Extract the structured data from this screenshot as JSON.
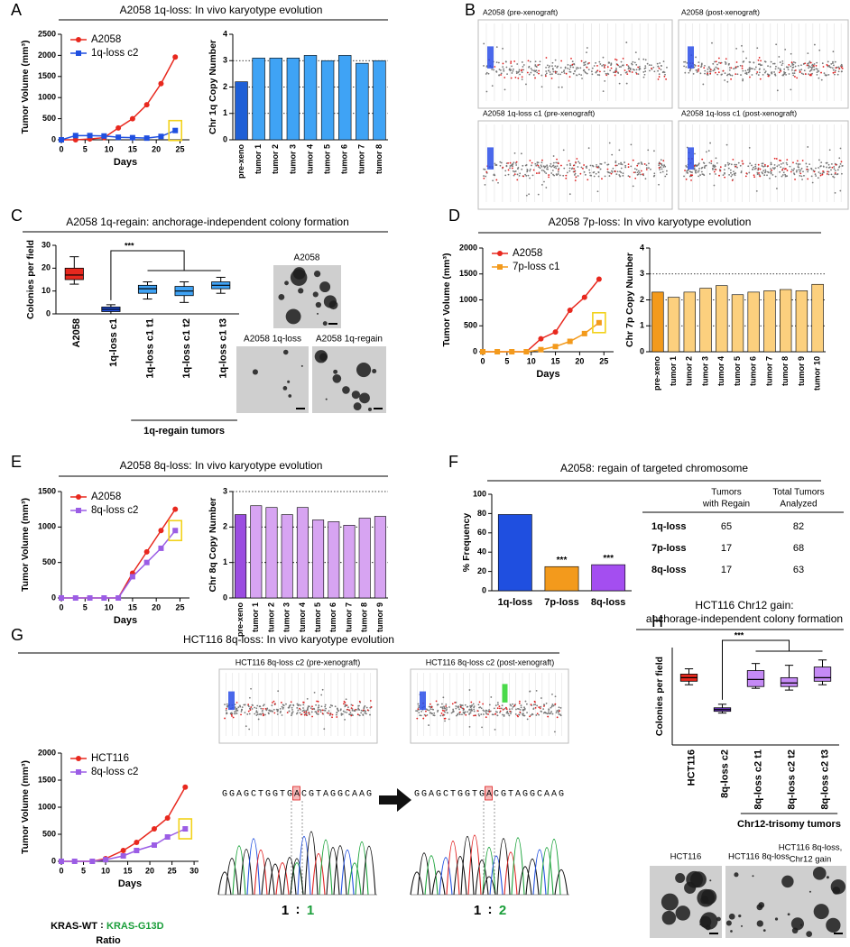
{
  "panel_labels": [
    "A",
    "B",
    "C",
    "D",
    "E",
    "F",
    "G",
    "H"
  ],
  "chart_data": [
    {
      "type": "line",
      "title": "A2058 1q-loss: In vivo karyotype evolution",
      "xlabel": "Days",
      "ylabel": "Tumor Volume (mm³)",
      "x": [
        0,
        3,
        6,
        9,
        12,
        15,
        18,
        21,
        24
      ],
      "series": [
        {
          "name": "A2058",
          "color": "#e8281e",
          "marker": "circle",
          "values": [
            0,
            0,
            20,
            50,
            280,
            500,
            830,
            1330,
            1960
          ]
        },
        {
          "name": "1q-loss c2",
          "color": "#1f4fe0",
          "marker": "square",
          "values": [
            0,
            100,
            100,
            90,
            60,
            50,
            40,
            80,
            220
          ]
        }
      ],
      "xlim": [
        0,
        27
      ],
      "ylim": [
        0,
        2500
      ],
      "xticks": [
        0,
        5,
        10,
        15,
        20,
        25
      ],
      "yticks": [
        0,
        500,
        1000,
        1500,
        2000,
        2500
      ],
      "legend": "upper left"
    },
    {
      "type": "bar",
      "ylabel": "Chr 1q Copy Number",
      "categories": [
        "pre-xeno",
        "tumor 1",
        "tumor 2",
        "tumor 3",
        "tumor 4",
        "tumor 5",
        "tumor 6",
        "tumor 7",
        "tumor 8"
      ],
      "values": [
        2.2,
        3.1,
        3.1,
        3.1,
        3.2,
        3.0,
        3.2,
        2.9,
        3.0
      ],
      "colors": [
        "#1f5fd6",
        "#3fa3f5",
        "#3fa3f5",
        "#3fa3f5",
        "#3fa3f5",
        "#3fa3f5",
        "#3fa3f5",
        "#3fa3f5",
        "#3fa3f5"
      ],
      "ylim": [
        0,
        4
      ],
      "yticks": [
        0,
        1,
        2,
        3,
        4
      ],
      "reference_lines": [
        1,
        2,
        3
      ]
    },
    {
      "type": "box",
      "title": "A2058 1q-regain: anchorage-independent colony formation",
      "ylabel": "Colonies per field",
      "categories": [
        "A2058",
        "1q-loss c1",
        "1q-loss c1 t1",
        "1q-loss c1 t2",
        "1q-loss c1 t3"
      ],
      "boxes": [
        {
          "min": 13,
          "q1": 15,
          "median": 17,
          "q3": 20,
          "max": 25
        },
        {
          "min": 0,
          "q1": 1,
          "median": 2,
          "q3": 3,
          "max": 4
        },
        {
          "min": 6.5,
          "q1": 9,
          "median": 11,
          "q3": 12.5,
          "max": 14
        },
        {
          "min": 5,
          "q1": 8,
          "median": 10,
          "q3": 12,
          "max": 14
        },
        {
          "min": 9,
          "q1": 11,
          "median": 12.5,
          "q3": 14,
          "max": 16
        }
      ],
      "colors": [
        "#e8281e",
        "#1f4fe0",
        "#3fa3f5",
        "#3fa3f5",
        "#3fa3f5"
      ],
      "ylim": [
        0,
        30
      ],
      "yticks": [
        0,
        10,
        20,
        30
      ],
      "annotation": "***",
      "group_label": "1q-regain tumors"
    },
    {
      "type": "line",
      "title": "A2058 7p-loss: In vivo karyotype evolution",
      "xlabel": "Days",
      "ylabel": "Tumor Volume (mm³)",
      "x": [
        0,
        3,
        6,
        9,
        12,
        15,
        18,
        21,
        24
      ],
      "series": [
        {
          "name": "A2058",
          "color": "#e8281e",
          "marker": "circle",
          "values": [
            0,
            0,
            0,
            0,
            250,
            380,
            800,
            1050,
            1400
          ]
        },
        {
          "name": "7p-loss c1",
          "color": "#f39a1c",
          "marker": "square",
          "values": [
            0,
            0,
            0,
            0,
            40,
            100,
            200,
            350,
            560
          ]
        }
      ],
      "xlim": [
        0,
        27
      ],
      "ylim": [
        0,
        2000
      ],
      "xticks": [
        0,
        5,
        10,
        15,
        20,
        25
      ],
      "yticks": [
        0,
        500,
        1000,
        1500,
        2000
      ],
      "legend": "upper left"
    },
    {
      "type": "bar",
      "ylabel": "Chr 7p Copy Number",
      "categories": [
        "pre-xeno",
        "tumor 1",
        "tumor 2",
        "tumor 3",
        "tumor 4",
        "tumor 5",
        "tumor 6",
        "tumor 7",
        "tumor 8",
        "tumor 9",
        "tumor 10"
      ],
      "values": [
        2.3,
        2.1,
        2.3,
        2.45,
        2.55,
        2.2,
        2.3,
        2.35,
        2.4,
        2.35,
        2.6
      ],
      "colors": [
        "#f39a1c",
        "#fcd07e",
        "#fcd07e",
        "#fcd07e",
        "#fcd07e",
        "#fcd07e",
        "#fcd07e",
        "#fcd07e",
        "#fcd07e",
        "#fcd07e",
        "#fcd07e"
      ],
      "ylim": [
        0,
        4
      ],
      "yticks": [
        0,
        1,
        2,
        3,
        4
      ],
      "reference_lines": [
        1,
        2,
        3
      ]
    },
    {
      "type": "line",
      "title": "A2058 8q-loss: In vivo karyotype evolution",
      "xlabel": "Days",
      "ylabel": "Tumor Volume (mm³)",
      "x": [
        0,
        3,
        6,
        9,
        12,
        15,
        18,
        21,
        24
      ],
      "series": [
        {
          "name": "A2058",
          "color": "#e8281e",
          "marker": "circle",
          "values": [
            0,
            0,
            0,
            0,
            0,
            350,
            650,
            950,
            1250
          ]
        },
        {
          "name": "8q-loss c2",
          "color": "#9b5de5",
          "marker": "square",
          "values": [
            0,
            0,
            0,
            0,
            0,
            300,
            500,
            700,
            950
          ]
        }
      ],
      "xlim": [
        0,
        27
      ],
      "ylim": [
        0,
        1500
      ],
      "xticks": [
        0,
        5,
        10,
        15,
        20,
        25
      ],
      "yticks": [
        0,
        500,
        1000,
        1500
      ],
      "legend": "upper left"
    },
    {
      "type": "bar",
      "ylabel": "Chr 8q Copy Number",
      "categories": [
        "pre-xeno",
        "tumor 1",
        "tumor 2",
        "tumor 3",
        "tumor 4",
        "tumor 5",
        "tumor 6",
        "tumor 7",
        "tumor 8",
        "tumor 9"
      ],
      "values": [
        2.35,
        2.6,
        2.55,
        2.35,
        2.55,
        2.2,
        2.15,
        2.05,
        2.25,
        2.3
      ],
      "colors": [
        "#9b4de0",
        "#d7a4f2",
        "#d7a4f2",
        "#d7a4f2",
        "#d7a4f2",
        "#d7a4f2",
        "#d7a4f2",
        "#d7a4f2",
        "#d7a4f2",
        "#d7a4f2"
      ],
      "ylim": [
        0,
        3
      ],
      "yticks": [
        0,
        1,
        2,
        3
      ],
      "reference_lines": [
        1,
        2,
        3
      ]
    },
    {
      "type": "bar",
      "title": "A2058: regain of targeted chromosome",
      "ylabel": "% Frequency",
      "categories": [
        "1q-loss",
        "7p-loss",
        "8q-loss"
      ],
      "values": [
        79,
        25,
        27
      ],
      "colors": [
        "#1f4fe0",
        "#f39a1c",
        "#a44ef0"
      ],
      "ylim": [
        0,
        100
      ],
      "yticks": [
        0,
        20,
        40,
        60,
        80,
        100
      ],
      "bar_annotations": [
        null,
        "***",
        "***"
      ]
    },
    {
      "type": "line",
      "title": "HCT116 8q-loss: In vivo karyotype evolution",
      "xlabel": "Days",
      "ylabel": "Tumor Volume (mm³)",
      "x": [
        0,
        3,
        7,
        10,
        14,
        17,
        21,
        24,
        28
      ],
      "series": [
        {
          "name": "HCT116",
          "color": "#e8281e",
          "marker": "circle",
          "values": [
            0,
            0,
            0,
            50,
            200,
            350,
            600,
            800,
            1370
          ]
        },
        {
          "name": "8q-loss c2",
          "color": "#9b5de5",
          "marker": "square",
          "values": [
            0,
            0,
            0,
            30,
            100,
            200,
            300,
            450,
            600
          ]
        }
      ],
      "xlim": [
        0,
        31
      ],
      "ylim": [
        0,
        2000
      ],
      "xticks": [
        0,
        5,
        10,
        15,
        20,
        25,
        30
      ],
      "yticks": [
        0,
        500,
        1000,
        1500,
        2000
      ],
      "legend": "upper left"
    },
    {
      "type": "box",
      "title": "HCT116 Chr12 gain:",
      "subtitle": "anchorage-independent colony formation",
      "ylabel": "Colonies per field",
      "categories": [
        "HCT116",
        "8q-loss c2",
        "8q-loss c2 t1",
        "8q-loss c2 t2",
        "8q-loss c2 t3"
      ],
      "boxes": [
        {
          "min": 34,
          "q1": 36,
          "median": 38,
          "q3": 40,
          "max": 43
        },
        {
          "min": 18,
          "q1": 19,
          "median": 20,
          "q3": 21,
          "max": 23
        },
        {
          "min": 32,
          "q1": 33,
          "median": 37,
          "q3": 42,
          "max": 46
        },
        {
          "min": 31,
          "q1": 33,
          "median": 35,
          "q3": 38,
          "max": 45
        },
        {
          "min": 34,
          "q1": 36,
          "median": 38,
          "q3": 44,
          "max": 48
        }
      ],
      "colors": [
        "#e8281e",
        "#7a3fd6",
        "#c58af5",
        "#c58af5",
        "#c58af5"
      ],
      "ylim": [
        0,
        55
      ],
      "annotation": "***",
      "group_label": "Chr12-trisomy tumors"
    }
  ],
  "images": {
    "B": [
      "A2058 (pre-xenograft)",
      "A2058 (post-xenograft)",
      "A2058 1q-loss c1 (pre-xenograft)",
      "A2058 1q-loss c1 (post-xenograft)"
    ],
    "C": [
      "A2058",
      "A2058 1q-loss",
      "A2058 1q-regain"
    ],
    "G": [
      "HCT116 8q-loss c2 (pre-xenograft)",
      "HCT116 8q-loss c2 (post-xenograft)"
    ],
    "H": [
      "HCT116",
      "HCT116 8q-loss",
      [
        "HCT116 8q-loss,",
        "Chr12 gain"
      ]
    ]
  },
  "table": {
    "headers": [
      [
        "Tumors",
        "with Regain"
      ],
      [
        "Total Tumors",
        "Analyzed"
      ]
    ],
    "rows": [
      [
        "1q-loss",
        65,
        82
      ],
      [
        "7p-loss",
        17,
        68
      ],
      [
        "8q-loss",
        17,
        63
      ]
    ]
  },
  "sequencing": {
    "sequences": [
      "GGAGCTGGTGACGTAGGCAAG",
      "GGAGCTGGTGACGTAGGCAAG"
    ],
    "ratios": [
      [
        1,
        1
      ],
      [
        1,
        2
      ]
    ],
    "separator": ":",
    "wt_label": "KRAS-WT",
    "mut_label": "KRAS-G13D",
    "ratio_word": "Ratio"
  }
}
